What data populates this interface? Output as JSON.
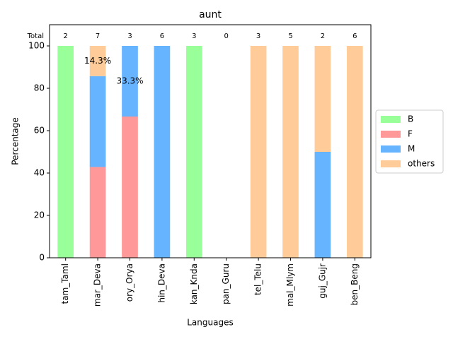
{
  "chart_data": {
    "type": "stacked_bar",
    "title": "aunt",
    "xlabel": "Languages",
    "ylabel": "Percentage",
    "categories": [
      "tam_Taml",
      "mar_Deva",
      "ory_Orya",
      "hin_Deva",
      "kan_Knda",
      "pan_Guru",
      "tel_Telu",
      "mal_Mlym",
      "guj_Gujr",
      "ben_Beng"
    ],
    "series": [
      {
        "name": "B",
        "color": "#99ff99",
        "values": [
          100,
          0,
          0,
          0,
          100,
          0,
          0,
          0,
          0,
          0
        ]
      },
      {
        "name": "F",
        "color": "#ff9999",
        "values": [
          0,
          42.857,
          66.667,
          0,
          0,
          0,
          0,
          0,
          0,
          0
        ]
      },
      {
        "name": "M",
        "color": "#66b3ff",
        "values": [
          0,
          42.857,
          33.333,
          100,
          0,
          0,
          0,
          0,
          50,
          0
        ],
        "value_labels": [
          null,
          null,
          "33.3%",
          null,
          null,
          null,
          null,
          null,
          null,
          null
        ]
      },
      {
        "name": "others",
        "color": "#ffcc99",
        "values": [
          0,
          14.286,
          0,
          0,
          0,
          0,
          100,
          100,
          50,
          100
        ],
        "value_labels": [
          null,
          "14.3%",
          null,
          null,
          null,
          null,
          null,
          null,
          null,
          null
        ]
      }
    ],
    "totals": {
      "label": "Total",
      "values": [
        2,
        7,
        3,
        6,
        3,
        0,
        3,
        5,
        2,
        6
      ]
    },
    "ylim": [
      0,
      110
    ],
    "yticks": [
      0,
      20,
      40,
      60,
      80,
      100
    ],
    "legend": "right"
  }
}
